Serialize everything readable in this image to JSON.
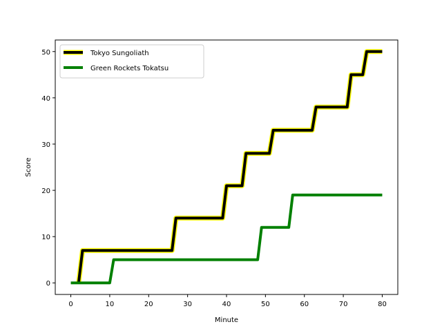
{
  "chart_data": {
    "type": "line",
    "title": "",
    "xlabel": "Minute",
    "ylabel": "Score",
    "xlim": [
      -4,
      84
    ],
    "ylim": [
      -2.5,
      52.5
    ],
    "xticks": [
      0,
      10,
      20,
      30,
      40,
      50,
      60,
      70,
      80
    ],
    "yticks": [
      0,
      10,
      20,
      30,
      40,
      50
    ],
    "grid": false,
    "legend_position": "upper-left",
    "series": [
      {
        "name": "Tokyo Sungoliath",
        "color": "#000000",
        "outline_color": "#ffff00",
        "x": [
          2,
          3,
          26,
          27,
          39,
          40,
          44,
          45,
          51,
          52,
          62,
          63,
          71,
          72,
          75,
          76,
          80
        ],
        "y": [
          0,
          7,
          7,
          14,
          14,
          21,
          21,
          28,
          28,
          33,
          33,
          38,
          38,
          45,
          45,
          50,
          50
        ]
      },
      {
        "name": "Green Rockets Tokatsu",
        "color": "#008000",
        "x": [
          0,
          10,
          11,
          48,
          49,
          56,
          57,
          80
        ],
        "y": [
          0,
          0,
          5,
          5,
          12,
          12,
          19,
          19
        ]
      }
    ]
  }
}
